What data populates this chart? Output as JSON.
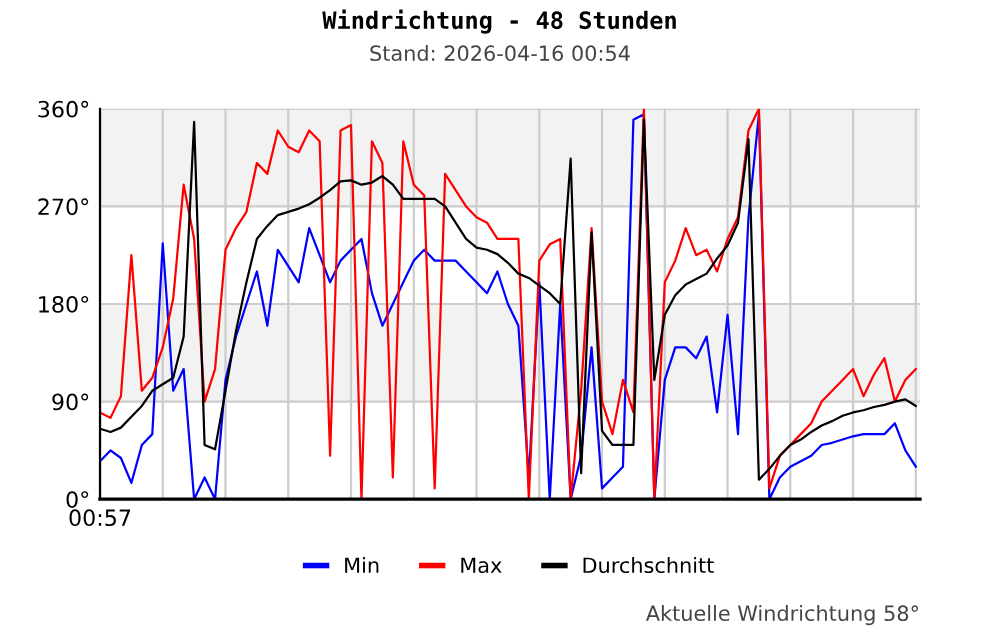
{
  "chart_data": {
    "type": "line",
    "title": "Windrichtung - 48 Stunden",
    "subtitle": "Stand: 2026-04-16 00:54",
    "annotations": [
      "Aktuelle Windrichtung 58°"
    ],
    "categories": [
      "00:57",
      null,
      null,
      null,
      null,
      null,
      null,
      null,
      null,
      null,
      null,
      null,
      null,
      null,
      null,
      null,
      null,
      null,
      null,
      null,
      null,
      null,
      null,
      null,
      null,
      null,
      null,
      null,
      null,
      null,
      null,
      null,
      null,
      null,
      null,
      null,
      null,
      null,
      null,
      null,
      null,
      null,
      null,
      null,
      null,
      null,
      null,
      null,
      null,
      null,
      null,
      null,
      null,
      null,
      null,
      null,
      null,
      null,
      null,
      null,
      null,
      null,
      null,
      null,
      null,
      null,
      null,
      null,
      null,
      null,
      null,
      null,
      null,
      null,
      null,
      null,
      null,
      null,
      null
    ],
    "ylim": [
      0,
      360
    ],
    "yticks": [
      {
        "value": 0,
        "label": "0°"
      },
      {
        "value": 90,
        "label": "90°"
      },
      {
        "value": 180,
        "label": "180°"
      },
      {
        "value": 270,
        "label": "270°"
      },
      {
        "value": 360,
        "label": "360°"
      }
    ],
    "bands": [
      {
        "axis": "y",
        "from": 90,
        "to": 180,
        "color": "#f2f2f2"
      },
      {
        "axis": "y",
        "from": 270,
        "to": 360,
        "color": "#f2f2f2"
      }
    ],
    "grid": true,
    "legend": "bottom",
    "marker": "none",
    "line_style": "solid",
    "series": [
      {
        "name": "Min",
        "color": "#0000ff",
        "values": [
          35,
          45,
          38,
          15,
          50,
          60,
          236,
          100,
          120,
          0,
          20,
          0,
          110,
          150,
          180,
          210,
          160,
          230,
          215,
          200,
          250,
          225,
          200,
          220,
          230,
          240,
          190,
          160,
          180,
          200,
          220,
          230,
          220,
          220,
          220,
          210,
          200,
          190,
          210,
          180,
          160,
          20,
          200,
          0,
          180,
          0,
          40,
          140,
          10,
          20,
          30,
          350,
          355,
          0,
          110,
          140,
          140,
          130,
          150,
          80,
          170,
          60,
          260,
          355,
          0,
          20,
          30,
          35,
          40,
          50,
          52,
          55,
          58,
          60,
          60,
          60,
          70,
          45,
          30
        ]
      },
      {
        "name": "Max",
        "color": "#ff0000",
        "values": [
          80,
          75,
          95,
          225,
          100,
          112,
          140,
          185,
          290,
          240,
          90,
          120,
          230,
          250,
          265,
          310,
          300,
          340,
          325,
          320,
          340,
          330,
          40,
          340,
          345,
          0,
          330,
          310,
          20,
          330,
          290,
          280,
          10,
          300,
          285,
          270,
          260,
          255,
          240,
          240,
          240,
          0,
          220,
          235,
          240,
          0,
          100,
          250,
          90,
          60,
          110,
          80,
          360,
          0,
          200,
          220,
          250,
          225,
          230,
          210,
          240,
          260,
          340,
          360,
          10,
          40,
          50,
          60,
          70,
          90,
          100,
          110,
          120,
          95,
          115,
          130,
          90,
          110,
          120
        ]
      },
      {
        "name": "Durchschnitt",
        "color": "#000000",
        "values": [
          65,
          62,
          66,
          76,
          86,
          100,
          106,
          112,
          150,
          348,
          50,
          46,
          100,
          155,
          200,
          240,
          252,
          262,
          265,
          268,
          272,
          278,
          285,
          293,
          294,
          290,
          292,
          298,
          290,
          277,
          277,
          277,
          277,
          270,
          255,
          240,
          232,
          230,
          226,
          218,
          208,
          204,
          197,
          190,
          180,
          314,
          24,
          246,
          63,
          50,
          50,
          50,
          350,
          110,
          170,
          188,
          198,
          203,
          208,
          222,
          234,
          255,
          332,
          18,
          28,
          40,
          50,
          55,
          62,
          68,
          72,
          77,
          80,
          82,
          85,
          87,
          90,
          92,
          86
        ]
      }
    ]
  }
}
